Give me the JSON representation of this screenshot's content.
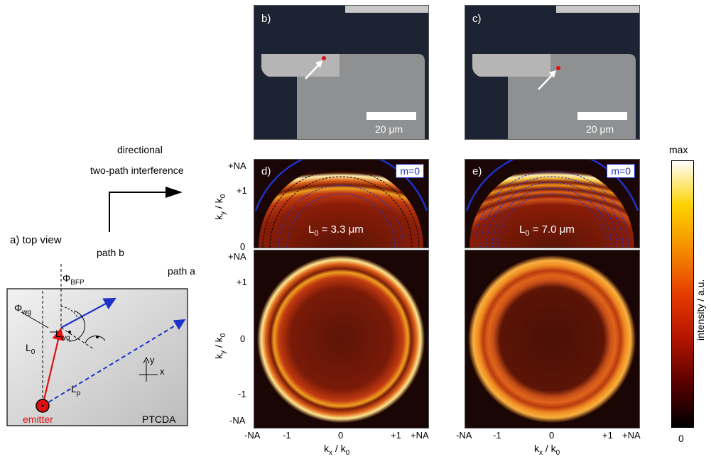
{
  "panel_a": {
    "title": "a) top view",
    "path_b": "path b",
    "path_a": "path a",
    "phi_bfp": "Φ",
    "phi_bfp_sub": "BFP",
    "phi_wg": "Φ",
    "phi_wg_sub": "wg",
    "l_wg": "L",
    "l_wg_sub": "wg",
    "l_0": "L",
    "l_0_sub": "0",
    "l_p": "L",
    "l_p_sub": "p",
    "axis_y": "y",
    "axis_x": "x",
    "material": "PTCDA",
    "emitter": "emitter"
  },
  "arrow_caption": {
    "line1": "directional",
    "line2": "two-path interference"
  },
  "panel_b": {
    "label": "b)",
    "scale": "20 μm"
  },
  "panel_c": {
    "label": "c)",
    "scale": "20 μm"
  },
  "panel_d": {
    "label": "d)",
    "mode": "m=0",
    "l0_text": "L",
    "l0_sub": "0",
    "l0_value": " = 3.3 μm"
  },
  "panel_e": {
    "label": "e)",
    "mode": "m=0",
    "l0_text": "L",
    "l0_sub": "0",
    "l0_value": " = 7.0 μm"
  },
  "axes": {
    "ylabel_top": "k",
    "ylabel_sub": "y",
    "ylabel_den": " / k",
    "ylabel_den_sub": "0",
    "xlabel": "k",
    "xlabel_sub": "x",
    "xlabel_den": " / k",
    "xlabel_den_sub": "0",
    "y_ticks_top": [
      "+NA",
      "+1",
      "0"
    ],
    "y_ticks_bottom": [
      "+NA",
      "+1",
      "0",
      "-1",
      "-NA"
    ],
    "x_ticks": [
      "-NA",
      "-1",
      "0",
      "+1",
      "+NA"
    ]
  },
  "colorbar": {
    "max": "max",
    "min": "0",
    "label": "intensity / a.u.",
    "colors": [
      "#000000",
      "#5a0000",
      "#b41400",
      "#e63c00",
      "#f58c00",
      "#fcd200",
      "#ffffff"
    ]
  }
}
